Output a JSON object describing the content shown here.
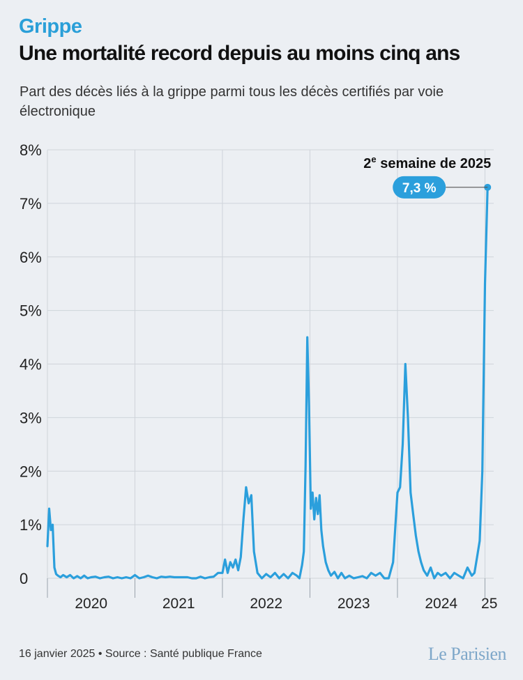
{
  "header": {
    "kicker": "Grippe",
    "title": "Une mortalité record depuis au moins cinq ans",
    "subtitle": "Part des décès liés à la grippe parmi tous les décès certifiés par voie électronique"
  },
  "footer": {
    "source": "16 janvier 2025 • Source : Santé publique France",
    "brand": "Le Parisien"
  },
  "colors": {
    "line": "#2b9fdc",
    "accent": "#2a9fd8",
    "grid": "#cfd4da",
    "background": "#eceff3"
  },
  "chart_data": {
    "type": "line",
    "title": "Une mortalité record depuis au moins cinq ans",
    "ylabel": "",
    "xlabel": "",
    "ylim": [
      0,
      8
    ],
    "xlim": [
      2020.0,
      2025.1
    ],
    "y_ticks": [
      0,
      1,
      2,
      3,
      4,
      5,
      6,
      7,
      8
    ],
    "y_tick_labels": [
      "0",
      "1%",
      "2%",
      "3%",
      "4%",
      "5%",
      "6%",
      "7%",
      "8%"
    ],
    "x_labels": [
      {
        "label": "2020",
        "at": 2020.5
      },
      {
        "label": "2021",
        "at": 2021.5
      },
      {
        "label": "2022",
        "at": 2022.5
      },
      {
        "label": "2023",
        "at": 2023.5
      },
      {
        "label": "2024",
        "at": 2024.5
      },
      {
        "label": "25",
        "at": 2025.05
      }
    ],
    "year_boundaries": [
      2020.0,
      2021.0,
      2022.0,
      2023.0,
      2024.0,
      2025.0
    ],
    "grid": true,
    "annotation": {
      "label_main": "2",
      "label_sup": "e",
      "label_rest": " semaine de 2025",
      "value_label": "7,3 %",
      "x": 2025.03,
      "y": 7.3
    },
    "series": [
      {
        "values_x": [
          2020.0,
          2020.02,
          2020.04,
          2020.06,
          2020.08,
          2020.1,
          2020.12,
          2020.15,
          2020.18,
          2020.22,
          2020.26,
          2020.3,
          2020.34,
          2020.38,
          2020.42,
          2020.46,
          2020.5,
          2020.55,
          2020.6,
          2020.65,
          2020.7,
          2020.75,
          2020.8,
          2020.85,
          2020.9,
          2020.95,
          2021.0,
          2021.05,
          2021.1,
          2021.15,
          2021.2,
          2021.25,
          2021.3,
          2021.35,
          2021.4,
          2021.45,
          2021.5,
          2021.55,
          2021.6,
          2021.65,
          2021.7,
          2021.75,
          2021.8,
          2021.85,
          2021.9,
          2021.95,
          2022.0,
          2022.03,
          2022.06,
          2022.09,
          2022.12,
          2022.15,
          2022.18,
          2022.21,
          2022.24,
          2022.27,
          2022.3,
          2022.33,
          2022.36,
          2022.4,
          2022.45,
          2022.5,
          2022.55,
          2022.6,
          2022.65,
          2022.7,
          2022.75,
          2022.8,
          2022.85,
          2022.88,
          2022.91,
          2022.93,
          2022.95,
          2022.97,
          2022.99,
          2023.01,
          2023.03,
          2023.05,
          2023.07,
          2023.09,
          2023.11,
          2023.13,
          2023.15,
          2023.18,
          2023.21,
          2023.24,
          2023.28,
          2023.32,
          2023.36,
          2023.4,
          2023.45,
          2023.5,
          2023.55,
          2023.6,
          2023.65,
          2023.7,
          2023.75,
          2023.8,
          2023.85,
          2023.9,
          2023.95,
          2024.0,
          2024.03,
          2024.06,
          2024.09,
          2024.12,
          2024.15,
          2024.18,
          2024.21,
          2024.24,
          2024.27,
          2024.3,
          2024.34,
          2024.38,
          2024.42,
          2024.46,
          2024.5,
          2024.55,
          2024.6,
          2024.65,
          2024.7,
          2024.75,
          2024.8,
          2024.85,
          2024.88,
          2024.91,
          2024.94,
          2024.97,
          2025.0,
          2025.03
        ],
        "values_y": [
          0.6,
          1.3,
          0.9,
          1.0,
          0.2,
          0.08,
          0.05,
          0.02,
          0.06,
          0.02,
          0.06,
          0.0,
          0.04,
          0.0,
          0.05,
          0.0,
          0.02,
          0.03,
          0.0,
          0.02,
          0.03,
          0.0,
          0.02,
          0.0,
          0.02,
          0.0,
          0.06,
          0.0,
          0.02,
          0.05,
          0.02,
          0.0,
          0.03,
          0.02,
          0.03,
          0.02,
          0.02,
          0.02,
          0.02,
          0.0,
          0.0,
          0.03,
          0.0,
          0.02,
          0.03,
          0.1,
          0.1,
          0.35,
          0.1,
          0.3,
          0.2,
          0.35,
          0.15,
          0.4,
          1.1,
          1.7,
          1.4,
          1.55,
          0.5,
          0.1,
          0.0,
          0.08,
          0.02,
          0.1,
          0.0,
          0.08,
          0.0,
          0.1,
          0.05,
          0.0,
          0.25,
          0.5,
          2.1,
          4.5,
          3.2,
          1.3,
          1.6,
          1.1,
          1.5,
          1.2,
          1.55,
          0.9,
          0.6,
          0.3,
          0.15,
          0.05,
          0.12,
          0.0,
          0.1,
          0.0,
          0.05,
          0.0,
          0.02,
          0.04,
          0.0,
          0.1,
          0.05,
          0.1,
          0.0,
          0.0,
          0.3,
          1.6,
          1.7,
          2.5,
          4.0,
          3.0,
          1.6,
          1.2,
          0.8,
          0.5,
          0.3,
          0.15,
          0.05,
          0.2,
          0.0,
          0.1,
          0.05,
          0.1,
          0.0,
          0.1,
          0.05,
          0.0,
          0.2,
          0.05,
          0.1,
          0.4,
          0.7,
          2.0,
          5.5,
          7.3
        ]
      }
    ]
  }
}
